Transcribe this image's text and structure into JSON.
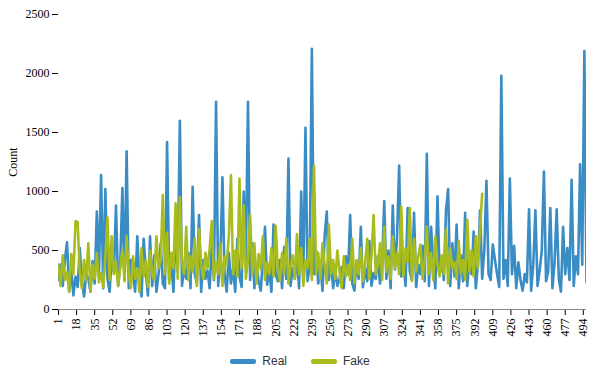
{
  "chart_data": {
    "type": "line",
    "y_label": "Count",
    "x": [
      1,
      3,
      5,
      7,
      9,
      11,
      13,
      15,
      17,
      19,
      21,
      23,
      25,
      27,
      29,
      31,
      33,
      35,
      37,
      39,
      41,
      43,
      45,
      47,
      49,
      51,
      53,
      55,
      57,
      59,
      61,
      63,
      65,
      67,
      69,
      71,
      73,
      75,
      77,
      79,
      81,
      83,
      85,
      87,
      89,
      91,
      93,
      95,
      97,
      99,
      101,
      103,
      105,
      107,
      109,
      111,
      113,
      115,
      117,
      119,
      121,
      123,
      125,
      127,
      129,
      131,
      133,
      135,
      137,
      139,
      141,
      143,
      145,
      147,
      149,
      151,
      153,
      155,
      157,
      159,
      161,
      163,
      165,
      167,
      169,
      171,
      173,
      175,
      177,
      179,
      181,
      183,
      185,
      187,
      189,
      191,
      193,
      195,
      197,
      199,
      201,
      203,
      205,
      207,
      209,
      211,
      213,
      215,
      217,
      219,
      221,
      223,
      225,
      227,
      229,
      231,
      233,
      235,
      237,
      239,
      241,
      243,
      245,
      247,
      249,
      251,
      253,
      255,
      257,
      259,
      261,
      263,
      265,
      267,
      269,
      271,
      273,
      275,
      277,
      279,
      281,
      283,
      285,
      287,
      289,
      291,
      293,
      295,
      297,
      299,
      301,
      303,
      305,
      307,
      309,
      311,
      313,
      315,
      317,
      319,
      321,
      323,
      325,
      327,
      329,
      331,
      333,
      335,
      337,
      339,
      341,
      343,
      345,
      347,
      349,
      351,
      353,
      355,
      357,
      359,
      361,
      363,
      365,
      367,
      369,
      371,
      373,
      375,
      377,
      379,
      381,
      383,
      385,
      387,
      389,
      391,
      393,
      395,
      397,
      399,
      401,
      403,
      405,
      407,
      409,
      411,
      413,
      415,
      417,
      419,
      421,
      423,
      425,
      427,
      429,
      431,
      433,
      435,
      437,
      439,
      441,
      443,
      445,
      447,
      449,
      451,
      453,
      455,
      457,
      459,
      461,
      463,
      465,
      467,
      469,
      471,
      473,
      475,
      477,
      479,
      481,
      483,
      485,
      487,
      489,
      491,
      493,
      495,
      497
    ],
    "series": [
      {
        "name": "Real",
        "color": "#3a8cc4",
        "values": [
          250,
          380,
          200,
          420,
          570,
          150,
          330,
          120,
          280,
          190,
          520,
          240,
          110,
          300,
          260,
          150,
          410,
          220,
          830,
          300,
          1140,
          180,
          1020,
          260,
          150,
          450,
          320,
          880,
          200,
          380,
          1030,
          250,
          1340,
          180,
          420,
          300,
          150,
          620,
          240,
          110,
          600,
          330,
          120,
          620,
          200,
          460,
          150,
          300,
          560,
          220,
          180,
          1420,
          250,
          400,
          150,
          680,
          320,
          1600,
          200,
          350,
          260,
          480,
          180,
          1040,
          300,
          220,
          800,
          150,
          420,
          260,
          330,
          180,
          560,
          250,
          1760,
          200,
          410,
          1120,
          300,
          150,
          480,
          220,
          350,
          150,
          600,
          280,
          190,
          1000,
          420,
          1760,
          250,
          560,
          180,
          380,
          240,
          160,
          420,
          700,
          210,
          330,
          150,
          720,
          300,
          240,
          420,
          180,
          530,
          260,
          1280,
          200,
          350,
          260,
          440,
          180,
          1000,
          300,
          1540,
          240,
          380,
          2210,
          300,
          500,
          220,
          380,
          160,
          620,
          830,
          250,
          420,
          180,
          330,
          200,
          260,
          360,
          180,
          450,
          300,
          800,
          220,
          160,
          400,
          260,
          700,
          190,
          350,
          240,
          580,
          200,
          310,
          260,
          450,
          220,
          380,
          920,
          260,
          500,
          180,
          880,
          340,
          600,
          1220,
          280,
          430,
          200,
          860,
          320,
          250,
          820,
          190,
          380,
          300,
          540,
          240,
          1320,
          200,
          700,
          380,
          180,
          960,
          300,
          420,
          250,
          840,
          1020,
          200,
          560,
          280,
          720,
          180,
          460,
          240,
          820,
          200,
          420,
          300,
          660,
          180,
          380,
          840,
          260,
          500,
          1090,
          300,
          250,
          550,
          420,
          300,
          190,
          1980,
          260,
          420,
          200,
          1110,
          300,
          540,
          180,
          400,
          250,
          160,
          300,
          230,
          850,
          160,
          380,
          840,
          200,
          330,
          500,
          1170,
          240,
          320,
          860,
          180,
          400,
          850,
          260,
          150,
          700,
          300,
          520,
          250,
          1100,
          200,
          450,
          300,
          1230,
          380,
          2190,
          230
        ]
      },
      {
        "name": "Fake",
        "color": "#a9bc1e",
        "values": [
          380,
          200,
          460,
          250,
          320,
          150,
          470,
          300,
          750,
          740,
          300,
          180,
          420,
          250,
          560,
          150,
          380,
          260,
          480,
          230,
          310,
          190,
          440,
          780,
          250,
          620,
          300,
          400,
          200,
          360,
          500,
          240,
          620,
          300,
          180,
          450,
          260,
          350,
          150,
          520,
          280,
          420,
          190,
          500,
          300,
          250,
          620,
          350,
          420,
          970,
          300,
          650,
          220,
          480,
          350,
          900,
          260,
          950,
          400,
          300,
          700,
          250,
          450,
          320,
          600,
          200,
          680,
          380,
          260,
          480,
          350,
          520,
          750,
          260,
          400,
          300,
          560,
          200,
          450,
          380,
          620,
          1140,
          300,
          500,
          280,
          1110,
          350,
          880,
          260,
          420,
          800,
          300,
          560,
          220,
          470,
          340,
          620,
          250,
          400,
          300,
          520,
          280,
          710,
          350,
          240,
          480,
          300,
          600,
          220,
          380,
          460,
          260,
          640,
          300,
          520,
          200,
          420,
          350,
          600,
          250,
          1220,
          300,
          480,
          260,
          560,
          380,
          220,
          720,
          300,
          420,
          260,
          500,
          320,
          180,
          450,
          280,
          380,
          250,
          600,
          220,
          420,
          300,
          520,
          240,
          380,
          600,
          260,
          450,
          800,
          300,
          380,
          560,
          250,
          700,
          320,
          450,
          260,
          620,
          350,
          480,
          300,
          870,
          280,
          520,
          400,
          860,
          240,
          600,
          320,
          450,
          550,
          260,
          420,
          700,
          300,
          480,
          250,
          620,
          380,
          280,
          460,
          300,
          680,
          220,
          520,
          350,
          400,
          260,
          580,
          300,
          420,
          250,
          760,
          320,
          500,
          280,
          620,
          350,
          700,
          980,
          null,
          null,
          null,
          null,
          null,
          null,
          null,
          null,
          null,
          null,
          null,
          null,
          null,
          null,
          null,
          null,
          null,
          null,
          null,
          null,
          null,
          null,
          null,
          null,
          null,
          null,
          null,
          null,
          null,
          null,
          null,
          null,
          null,
          null,
          null,
          null,
          null,
          null,
          null,
          null,
          null,
          null,
          null,
          null,
          null,
          null,
          null,
          null,
          null
        ]
      }
    ],
    "xlim": [
      1,
      497
    ],
    "xticks": [
      1,
      18,
      35,
      52,
      69,
      86,
      103,
      120,
      137,
      154,
      171,
      188,
      205,
      222,
      239,
      256,
      273,
      290,
      307,
      324,
      341,
      358,
      375,
      392,
      409,
      426,
      443,
      460,
      477,
      494
    ],
    "ylim": [
      0,
      2500
    ],
    "yticks": [
      0,
      500,
      1000,
      1500,
      2000,
      2500
    ],
    "grid": false,
    "legend": "bottom"
  }
}
